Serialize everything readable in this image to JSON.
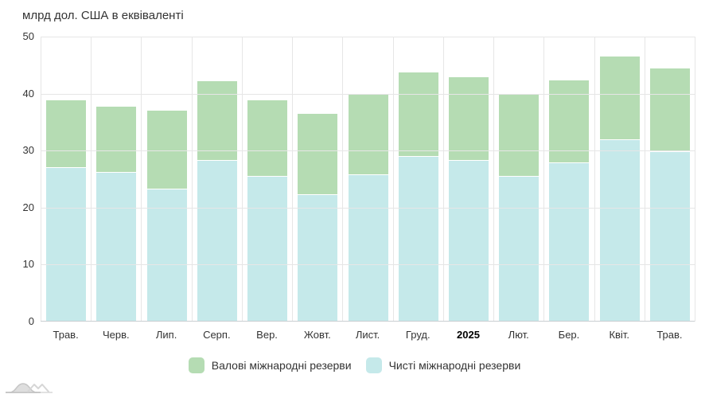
{
  "header": {
    "title": "млрд дол. США в еквіваленті"
  },
  "chart_data": {
    "type": "bar",
    "stacked": true,
    "title": "млрд дол. США в еквіваленті",
    "categories": [
      "Трав.",
      "Черв.",
      "Лип.",
      "Серп.",
      "Вер.",
      "Жовт.",
      "Лист.",
      "Груд.",
      "2025",
      "Лют.",
      "Бер.",
      "Квіт.",
      "Трав."
    ],
    "bold_category_index": 8,
    "series": [
      {
        "name": "Валові міжнародні резерви",
        "color": "#b5dcb3",
        "values": [
          39.0,
          37.9,
          37.2,
          42.3,
          38.9,
          36.6,
          39.9,
          43.8,
          43.0,
          40.1,
          42.4,
          46.7,
          44.5
        ]
      },
      {
        "name": "Чисті міжнародні резерви",
        "color": "#c5e9ea",
        "values": [
          27.1,
          26.3,
          23.3,
          28.4,
          25.6,
          22.4,
          25.9,
          29.1,
          28.4,
          25.6,
          27.9,
          32.0,
          29.9
        ]
      }
    ],
    "xlabel": "",
    "ylabel": "млрд дол. США в еквіваленті",
    "ylim": [
      0,
      50
    ],
    "yticks": [
      0,
      10,
      20,
      30,
      40,
      50
    ],
    "grid": true,
    "legend_position": "bottom"
  },
  "icons": {
    "watermark": "overlapping-waves-logo"
  },
  "colors": {
    "gridline": "#e6e6e6",
    "axis_line": "#c9ced1",
    "text": "#333333"
  }
}
